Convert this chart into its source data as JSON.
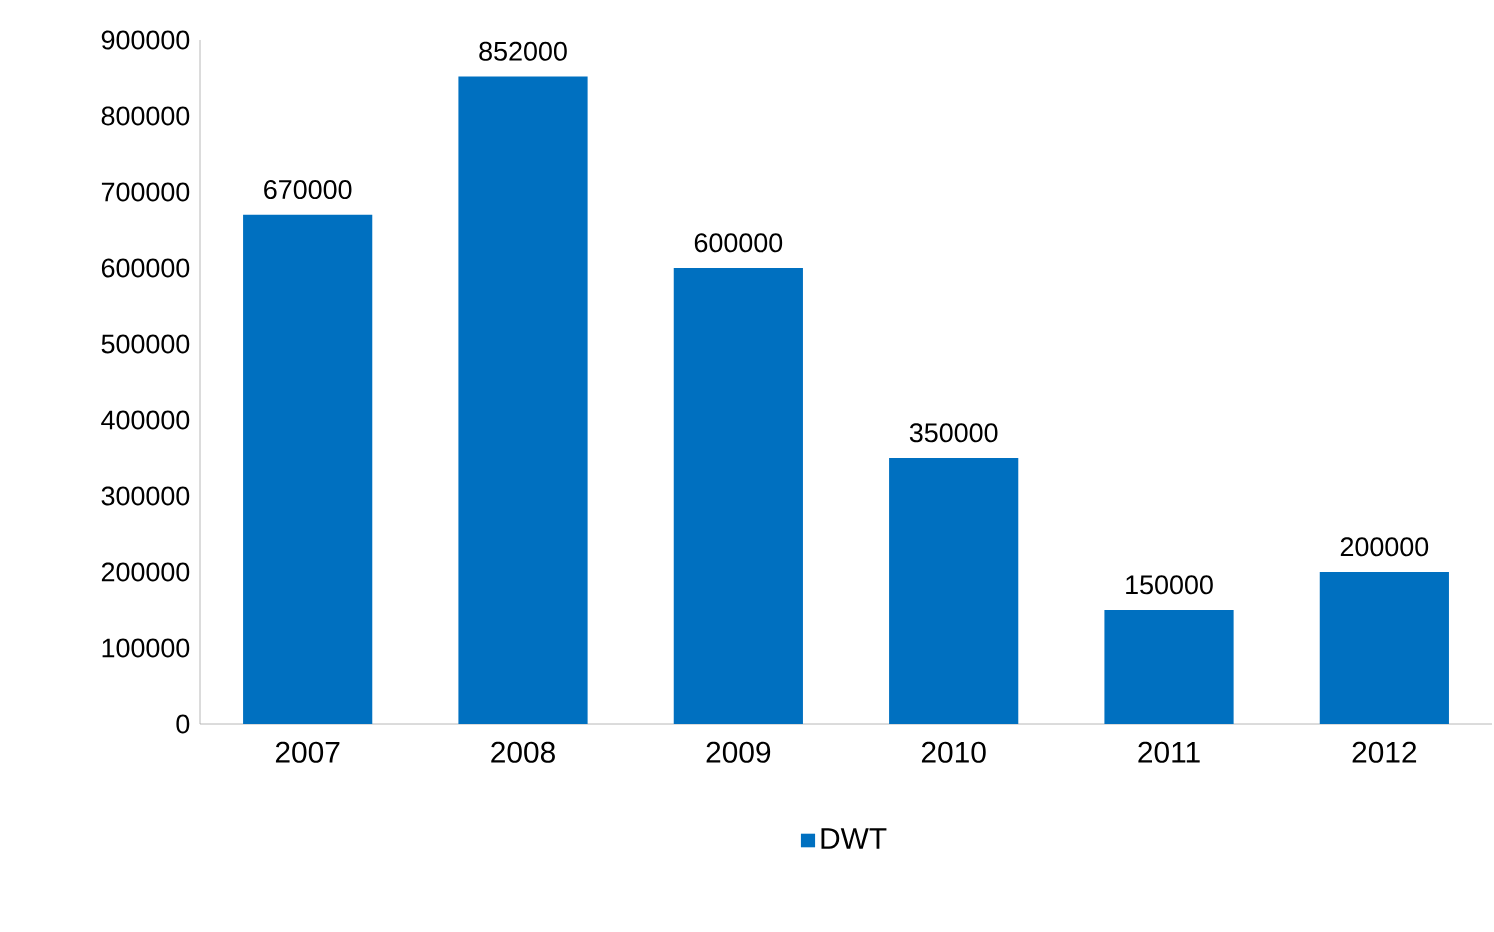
{
  "chart_data": {
    "type": "bar",
    "categories": [
      "2007",
      "2008",
      "2009",
      "2010",
      "2011",
      "2012"
    ],
    "series": [
      {
        "name": "DWT",
        "color": "#0070c0",
        "values": [
          670000,
          852000,
          600000,
          350000,
          150000,
          200000
        ]
      }
    ],
    "ylim": [
      0,
      900000
    ],
    "yticks": [
      0,
      100000,
      200000,
      300000,
      400000,
      500000,
      600000,
      700000,
      800000,
      900000
    ],
    "data_labels": true,
    "legend": "bottom",
    "grid": false
  }
}
